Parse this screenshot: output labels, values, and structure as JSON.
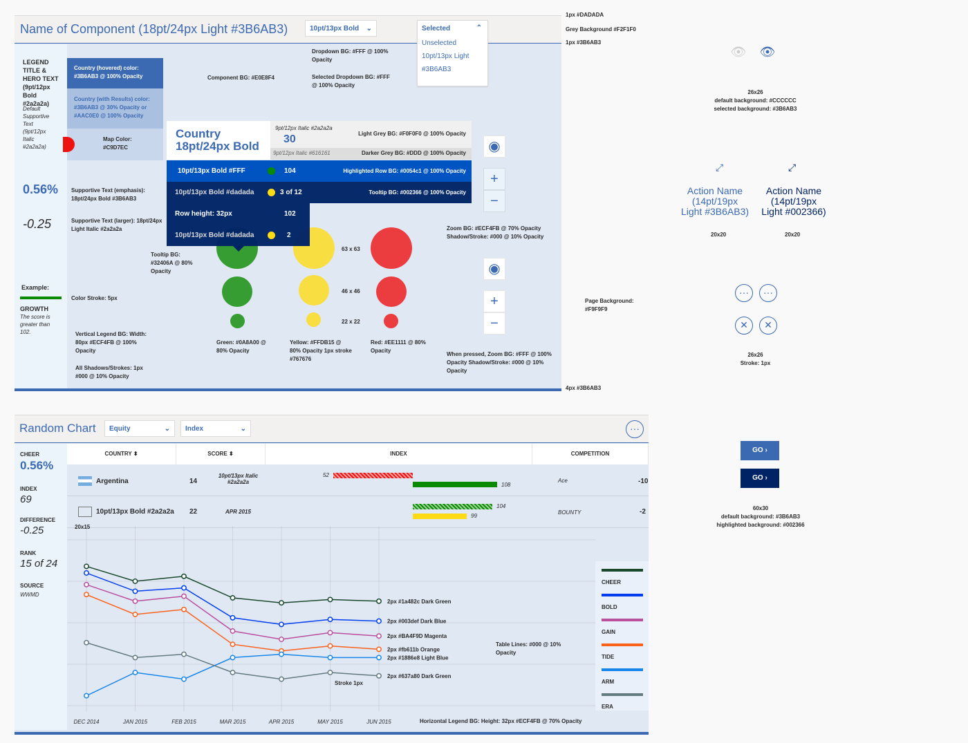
{
  "component": {
    "title": "Name of Component (18pt/24px Light #3B6AB3)",
    "dropdown1_label": "10pt/13px Bold",
    "dropdown2": {
      "selected": "Selected",
      "options": [
        "Unselected",
        "10pt/13px Light",
        "#3B6AB3"
      ]
    },
    "legend_title": "LEGEND TITLE & HERO TEXT (9pt/12px Bold #2a2a2a)",
    "default_supportive": "Default Supportive Text (9pt/12px Italic #2a2a2a)",
    "hero_value": "0.56%",
    "hero_value2": "-0.25",
    "example_label": "Example:",
    "growth_title": "GROWTH",
    "growth_text": "The score is greater than 102.",
    "country_hovered": "Country (hovered) color: #3B6AB3 @ 100% Opacity",
    "country_results": "Country (with Results) color: #3B6AB3 @ 30% Opacity or #AAC0E0 @ 100% Opacity",
    "map_color": "Map Color: #C9D7EC",
    "component_bg": "Component BG: #E0E8F4",
    "dropdown_bg": "Dropdown BG: #FFF @ 100% Opacity",
    "selected_dropdown_bg": "Selected Dropdown BG: #FFF @ 100% Opacity",
    "supportive_emphasis": "Supportive Text (emphasis): 18pt/24px Bold #3B6AB3",
    "supportive_larger": "Supportive Text (larger): 18pt/24px Light Italic #2a2a2a",
    "tooltip_bg": "Tooltip BG: #32406A @ 80% Opacity",
    "color_stroke": "Color Stroke: 5px",
    "vertical_legend_bg": "Vertical Legend BG: Width: 80px #ECF4FB @ 100% Opacity",
    "all_shadows": "All Shadows/Strokes: 1px #000 @ 10% Opacity",
    "tooltip": {
      "country": "Country",
      "country_sub": "18pt/24px Bold",
      "italic1": "9pt/12px Italic #2a2a2a",
      "score": "30",
      "italic2": "9pt/12px Italic #616161",
      "light_grey": "Light Grey BG: #F0F0F0 @ 100% Opacity",
      "darker_grey": "Darker Grey BG: #DDD @ 100% Opacity",
      "rows": [
        {
          "label": "10pt/13px Bold #FFF",
          "value": "104",
          "note": "Highlighted Row BG: #0054c1 @ 100% Opacity"
        },
        {
          "label": "10pt/13px Bold #dadada",
          "value": "3 of 12",
          "note": "Tooltip BG: #002366 @ 100% Opacity"
        },
        {
          "label": "Row height: 32px",
          "value": "102"
        },
        {
          "label": "10pt/13px Bold #dadada",
          "value": "2"
        }
      ]
    },
    "zoom_bg": "Zoom BG: #ECF4FB @ 70% Opacity Shadow/Stroke: #000 @ 10% Opacity",
    "when_pressed": "When pressed, Zoom BG: #FFF @ 100% Opacity Shadow/Stroke: #000 @ 10% Opacity",
    "size_large": "63 x 63",
    "size_medium": "46 x 46",
    "size_small": "22 x 22",
    "green": "Green: #0A8A00 @ 80% Opacity",
    "yellow": "Yellow: #FFDB15 @ 80% Opacity 1px stroke #767676",
    "red": "Red: #EE1111 @ 80% Opacity",
    "zoom_plus": "+",
    "zoom_minus": "−",
    "colors": {
      "accent": "#3B6AB3",
      "dark": "#002366",
      "highlight": "#0054c1",
      "green": "#0A8A00",
      "yellow": "#FFDB15",
      "red": "#EE1111"
    }
  },
  "side_notes": {
    "border_note": "1px #DADADA",
    "grey_bg": "Grey Background #F2F1F0",
    "accent_line": "1px #3B6AB3",
    "page_bg": "Page Background: #F9F9F9",
    "bottom_line": "4px #3B6AB3"
  },
  "icons_panel": {
    "eye_size": "26x26",
    "eye_default": "default background: #CCCCCC",
    "eye_selected": "selected background: #3B6AB3",
    "action1": "Action Name (14pt/19px Light #3B6AB3)",
    "action2": "Action Name (14pt/19px Light #002366)",
    "action_size1": "20x20",
    "action_size2": "20x20",
    "circle_size": "26x26",
    "circle_stroke": "Stroke: 1px",
    "go_label": "GO",
    "go_size": "60x30",
    "go_default": "default background: #3B6AB3",
    "go_highlight": "highlighted background: #002366"
  },
  "random_chart": {
    "title": "Random Chart",
    "select1": "Equity",
    "select2": "Index",
    "left": {
      "cheer_label": "CHEER",
      "cheer_value": "0.56%",
      "index_label": "INDEX",
      "index_value": "69",
      "diff_label": "DIFFERENCE",
      "diff_value": "-0.25",
      "rank_label": "RANK",
      "rank_value": "15 of 24",
      "source_label": "SOURCE",
      "source_value": "WWMD"
    },
    "columns": [
      "COUNTRY",
      "SCORE",
      "INDEX",
      "COMPETITION"
    ],
    "rows": [
      {
        "country": "Argentina",
        "score": "14",
        "italic": "10pt/13px Italic #2a2a2a",
        "neg": "52",
        "pos": "108",
        "comp": "Ace",
        "comp_val": "-10"
      },
      {
        "country": "10pt/13px Bold #2a2a2a",
        "score": "22",
        "italic": "APR 2015",
        "neg": "104",
        "pos": "99",
        "comp": "BOUNTY",
        "comp_val": "-2"
      }
    ],
    "flag_size": "20x15",
    "table_lines": "Table Lines: #000 @ 10% Opacity",
    "stroke_label": "Stroke 1px",
    "horizontal_legend": "Horizontal Legend BG: Height: 32px #ECF4FB @ 70% Opacity",
    "legend": [
      {
        "name": "CHEER",
        "color": "#1a482c"
      },
      {
        "name": "BOLD",
        "color": "#003def"
      },
      {
        "name": "GAIN",
        "color": "#BA4F9D"
      },
      {
        "name": "TIDE",
        "color": "#fb611b"
      },
      {
        "name": "ARM",
        "color": "#1886e8"
      },
      {
        "name": "ERA",
        "color": "#637a80"
      }
    ]
  },
  "chart_data": {
    "type": "line",
    "x": [
      "DEC 2014",
      "JAN 2015",
      "FEB 2015",
      "MAR 2015",
      "APR 2015",
      "MAY 2015",
      "JUN 2015"
    ],
    "series": [
      {
        "name": "2px #1a482c Dark Green",
        "color": "#1a482c",
        "values": [
          8.4,
          7.5,
          7.8,
          6.5,
          6.2,
          6.4,
          6.3
        ]
      },
      {
        "name": "2px #003def Dark Blue",
        "color": "#003def",
        "values": [
          8.0,
          6.9,
          7.1,
          5.3,
          4.9,
          5.2,
          5.1
        ]
      },
      {
        "name": "2px #BA4F9D Magenta",
        "color": "#BA4F9D",
        "values": [
          7.3,
          6.3,
          6.6,
          4.5,
          4.0,
          4.4,
          4.2
        ]
      },
      {
        "name": "2px #fb611b Orange",
        "color": "#fb611b",
        "values": [
          6.7,
          5.5,
          5.8,
          3.7,
          3.3,
          3.6,
          3.4
        ]
      },
      {
        "name": "2px #1886e8 Light Blue",
        "color": "#1886e8",
        "values": [
          0.6,
          2.0,
          1.6,
          2.9,
          3.1,
          2.9,
          2.9
        ]
      },
      {
        "name": "2px #637a80 Dark Green",
        "color": "#637a80",
        "values": [
          3.8,
          2.9,
          3.1,
          2.0,
          1.6,
          2.0,
          1.8
        ]
      }
    ],
    "ylim": [
      0,
      10
    ],
    "grid": true
  }
}
